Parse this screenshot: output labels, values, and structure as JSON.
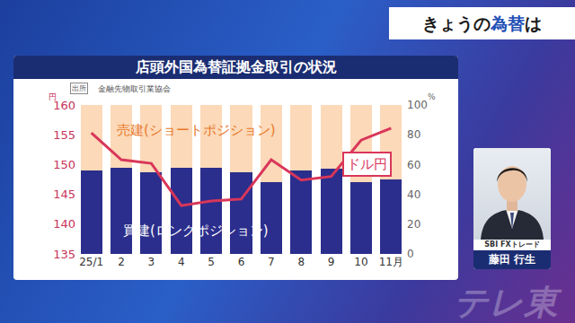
{
  "header": {
    "prefix": "きょうの",
    "highlight": "為替",
    "suffix": "は"
  },
  "chart_data": {
    "type": "bar",
    "title": "店頭外国為替証拠金取引の状況",
    "source_label": "出所",
    "source": "金融先物取引業協会",
    "categories": [
      "25/1",
      "2",
      "3",
      "4",
      "5",
      "6",
      "7",
      "8",
      "9",
      "10",
      "11月"
    ],
    "stacked": true,
    "grid": false,
    "ylabel": "円",
    "y2label": "%",
    "ylim": [
      135,
      160
    ],
    "yticks": [
      135,
      140,
      145,
      150,
      155,
      160
    ],
    "y2lim": [
      0,
      100
    ],
    "y2ticks": [
      0,
      20,
      40,
      60,
      80,
      100
    ],
    "series": [
      {
        "name": "買建(ロングポジション)",
        "type": "bar",
        "axis": "y2",
        "color": "#2b2e8c",
        "values": [
          56,
          58,
          55,
          58,
          58,
          55,
          48,
          56,
          57,
          48,
          50
        ]
      },
      {
        "name": "売建(ショートポジション)",
        "type": "bar",
        "axis": "y2",
        "color": "#fcd9b8",
        "values": [
          44,
          42,
          45,
          42,
          42,
          45,
          52,
          44,
          43,
          52,
          50
        ]
      },
      {
        "name": "ドル円",
        "type": "line",
        "axis": "y",
        "color": "#d9365a",
        "values": [
          155.3,
          150.8,
          150.2,
          143.1,
          143.9,
          144.2,
          150.8,
          147.4,
          148.0,
          154.1,
          156.1
        ]
      }
    ]
  },
  "presenter": {
    "company": "SBI FXトレード",
    "name": "藤田 行生"
  },
  "watermark": "テレ東"
}
